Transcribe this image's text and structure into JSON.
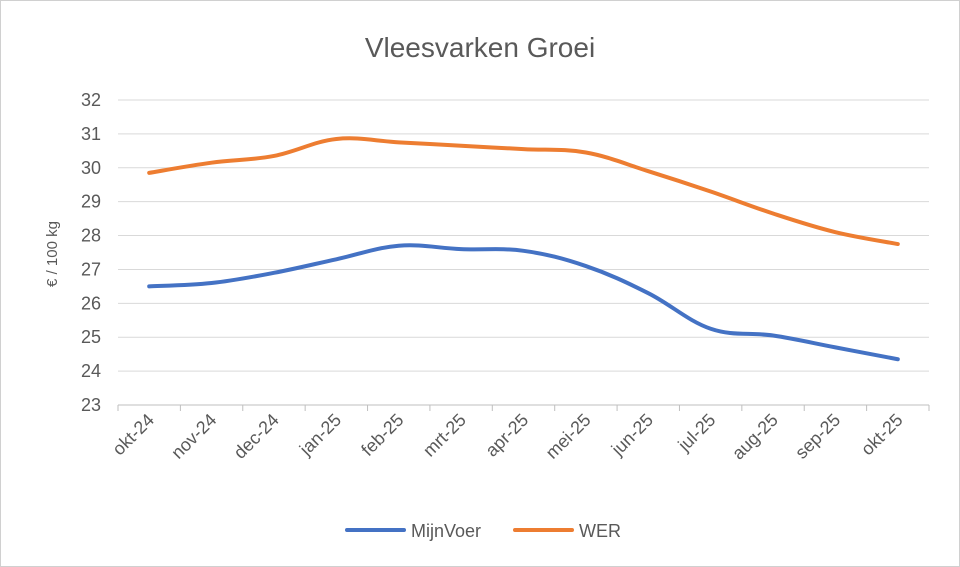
{
  "chart_data": {
    "type": "line",
    "title": "Vleesvarken Groei",
    "xlabel": "",
    "ylabel": "€ / 100 kg",
    "ylim": [
      23,
      32
    ],
    "yticks": [
      23,
      24,
      25,
      26,
      27,
      28,
      29,
      30,
      31,
      32
    ],
    "grid": "horizontal",
    "legend": "bottom",
    "categories": [
      "okt-24",
      "nov-24",
      "dec-24",
      "jan-25",
      "feb-25",
      "mrt-25",
      "apr-25",
      "mei-25",
      "jun-25",
      "jul-25",
      "aug-25",
      "sep-25",
      "okt-25"
    ],
    "series": [
      {
        "name": "MijnVoer",
        "color": "#4472C4",
        "values": [
          26.5,
          26.6,
          26.9,
          27.3,
          27.7,
          27.6,
          27.55,
          27.1,
          26.3,
          25.25,
          25.05,
          24.7,
          24.35
        ]
      },
      {
        "name": "WER",
        "color": "#ED7D31",
        "values": [
          29.85,
          30.15,
          30.35,
          30.85,
          30.75,
          30.65,
          30.55,
          30.45,
          29.9,
          29.3,
          28.65,
          28.1,
          27.75
        ]
      }
    ],
    "colors": {
      "grid": "#d9d9d9",
      "axis": "#bfbfbf",
      "text": "#595959"
    }
  }
}
